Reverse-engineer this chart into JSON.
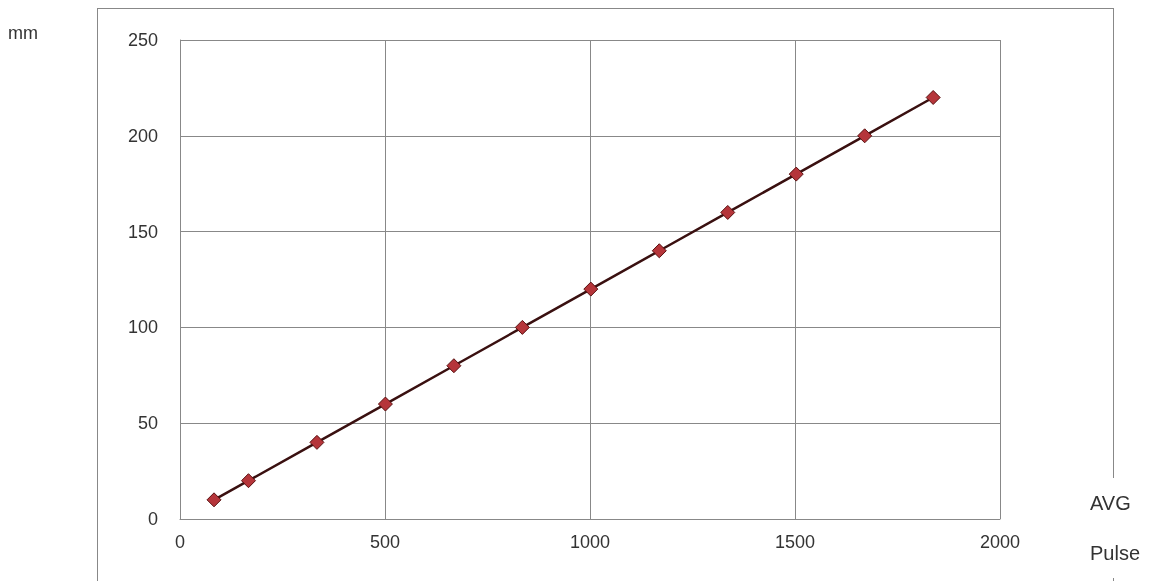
{
  "chart_data": {
    "type": "line",
    "xlabel": "AVG Pulse",
    "ylabel": "mm",
    "x": [
      83,
      167,
      334,
      501,
      668,
      835,
      1002,
      1169,
      1336,
      1503,
      1670,
      1837
    ],
    "series": [
      {
        "color": "#b5353a",
        "values": [
          10,
          20,
          40,
          60,
          80,
          100,
          120,
          140,
          160,
          180,
          200,
          220
        ]
      }
    ],
    "xlim": [
      0,
      2000
    ],
    "xticks": [
      0,
      500,
      1000,
      1500,
      2000
    ],
    "ylim": [
      0,
      250
    ],
    "yticks": [
      0,
      50,
      100,
      150,
      200,
      250
    ],
    "grid": true,
    "marker": "diamond",
    "line_style": "solid"
  }
}
